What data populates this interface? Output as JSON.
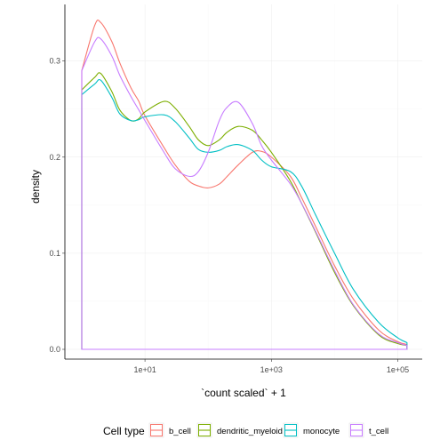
{
  "chart_data": {
    "type": "line",
    "subtype": "density",
    "title": "",
    "xlabel": "`count scaled` + 1",
    "ylabel": "density",
    "x_scale": "log10",
    "xlim": [
      1,
      150000
    ],
    "ylim": [
      0,
      0.345
    ],
    "x_ticks": [
      {
        "value": 10,
        "label": "1e+01"
      },
      {
        "value": 1000,
        "label": "1e+03"
      },
      {
        "value": 100000,
        "label": "1e+05"
      }
    ],
    "y_ticks": [
      {
        "value": 0.0,
        "label": "0.0"
      },
      {
        "value": 0.1,
        "label": "0.1"
      },
      {
        "value": 0.2,
        "label": "0.2"
      },
      {
        "value": 0.3,
        "label": "0.3"
      }
    ],
    "grid": true,
    "legend": {
      "title": "Cell type",
      "position": "bottom"
    },
    "x": [
      1,
      1.6,
      2,
      3,
      4,
      6,
      8,
      10,
      20,
      30,
      50,
      70,
      100,
      150,
      200,
      300,
      500,
      700,
      1000,
      2000,
      3000,
      5000,
      10000,
      20000,
      50000,
      100000,
      140000
    ],
    "series": [
      {
        "name": "b_cell",
        "color": "#F8766D",
        "values": [
          0.29,
          0.337,
          0.34,
          0.32,
          0.298,
          0.272,
          0.258,
          0.243,
          0.21,
          0.192,
          0.175,
          0.17,
          0.168,
          0.172,
          0.18,
          0.192,
          0.205,
          0.206,
          0.2,
          0.18,
          0.158,
          0.128,
          0.087,
          0.052,
          0.02,
          0.008,
          0.005
        ]
      },
      {
        "name": "dendritic_myeloid",
        "color": "#7CAE00",
        "values": [
          0.27,
          0.283,
          0.287,
          0.268,
          0.249,
          0.238,
          0.24,
          0.247,
          0.258,
          0.251,
          0.232,
          0.218,
          0.212,
          0.218,
          0.226,
          0.232,
          0.228,
          0.218,
          0.205,
          0.175,
          0.152,
          0.122,
          0.08,
          0.045,
          0.015,
          0.006,
          0.004
        ]
      },
      {
        "name": "monocyte",
        "color": "#00BFC4",
        "values": [
          0.265,
          0.276,
          0.28,
          0.262,
          0.245,
          0.238,
          0.239,
          0.242,
          0.244,
          0.237,
          0.22,
          0.208,
          0.205,
          0.207,
          0.211,
          0.213,
          0.207,
          0.197,
          0.19,
          0.185,
          0.17,
          0.14,
          0.1,
          0.062,
          0.028,
          0.012,
          0.007
        ]
      },
      {
        "name": "t_cell",
        "color": "#C77CFF",
        "values": [
          0.29,
          0.32,
          0.323,
          0.305,
          0.285,
          0.263,
          0.249,
          0.238,
          0.205,
          0.188,
          0.18,
          0.185,
          0.205,
          0.238,
          0.252,
          0.257,
          0.235,
          0.212,
          0.197,
          0.172,
          0.152,
          0.123,
          0.082,
          0.046,
          0.016,
          0.007,
          0.004
        ]
      }
    ]
  }
}
